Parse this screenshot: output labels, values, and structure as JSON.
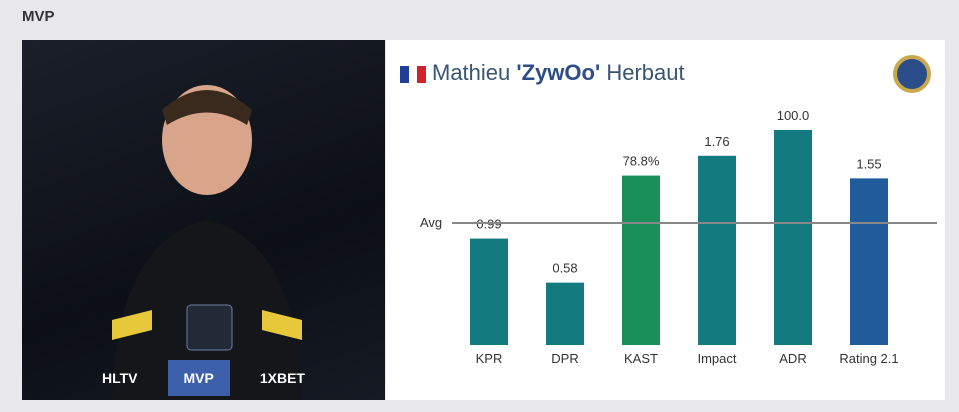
{
  "header": {
    "title": "MVP"
  },
  "photo": {
    "badges": [
      "HLTV",
      "MVP",
      "1XBET"
    ]
  },
  "player": {
    "first": "Mathieu",
    "nick": "'ZywOo'",
    "last": "Herbaut"
  },
  "chart_data": {
    "type": "bar",
    "categories": [
      "KPR",
      "DPR",
      "KAST",
      "Impact",
      "ADR",
      "Rating 2.1"
    ],
    "values": [
      0.99,
      0.58,
      78.8,
      1.76,
      100.0,
      1.55
    ],
    "value_labels": [
      "0.99",
      "0.58",
      "78.8%",
      "1.76",
      "100.0",
      "1.55"
    ],
    "colors": [
      "#137a80",
      "#137a80",
      "#1a8f5a",
      "#137a80",
      "#137a80",
      "#1f5c99"
    ],
    "reference_label": "Avg"
  }
}
